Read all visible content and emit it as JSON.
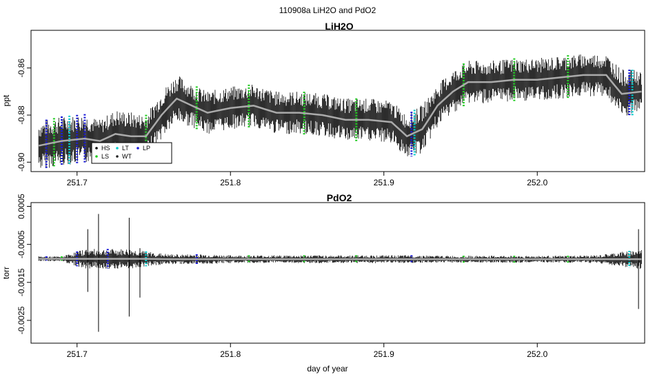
{
  "figure_title": "110908a   LiH2O and PdO2",
  "xlabel": "day of year",
  "colors": {
    "HS": "#000000",
    "LS": "#22cc22",
    "LT": "#00cccc",
    "WT": "#222222",
    "LP": "#1a1ad6",
    "trace": "#000000",
    "smooth": "#aaaaaa"
  },
  "chart_data": [
    {
      "type": "line",
      "title": "LiH2O",
      "ylabel": "ppt",
      "xlabel": "",
      "xlim": [
        251.67,
        252.07
      ],
      "ylim": [
        -0.904,
        -0.844
      ],
      "x_ticks": [
        "251.7",
        "251.8",
        "251.9",
        "252.0"
      ],
      "y_ticks": [
        "-0.90",
        "-0.88",
        "-0.86"
      ],
      "legend": {
        "placement": "bottom-left",
        "entries": [
          "HS",
          "LS",
          "LT",
          "WT",
          "LP"
        ]
      },
      "series": [
        {
          "x": [
            251.675,
            251.69,
            251.705,
            251.715,
            251.725,
            251.735,
            251.745,
            251.755,
            251.765,
            251.775,
            251.785,
            251.8,
            251.815,
            251.83,
            251.845,
            251.86,
            251.875,
            251.89,
            251.905,
            251.915,
            251.925,
            251.935,
            251.945,
            251.955,
            251.97,
            251.985,
            252.0,
            252.015,
            252.03,
            252.045,
            252.055,
            252.068
          ],
          "y": [
            -0.893,
            -0.891,
            -0.89,
            -0.891,
            -0.888,
            -0.889,
            -0.889,
            -0.88,
            -0.873,
            -0.876,
            -0.879,
            -0.877,
            -0.876,
            -0.879,
            -0.879,
            -0.88,
            -0.882,
            -0.882,
            -0.883,
            -0.889,
            -0.886,
            -0.876,
            -0.87,
            -0.866,
            -0.866,
            -0.865,
            -0.865,
            -0.864,
            -0.863,
            -0.863,
            -0.871,
            -0.87
          ],
          "band": [
            0.008,
            0.008,
            0.008,
            0.007,
            0.008,
            0.008,
            0.007,
            0.008,
            0.008,
            0.007,
            0.007,
            0.007,
            0.007,
            0.007,
            0.007,
            0.007,
            0.007,
            0.007,
            0.007,
            0.007,
            0.008,
            0.007,
            0.007,
            0.007,
            0.007,
            0.007,
            0.007,
            0.007,
            0.007,
            0.007,
            0.008,
            0.007
          ]
        }
      ],
      "markers": [
        {
          "x": 251.68,
          "type": "LP"
        },
        {
          "x": 251.685,
          "type": "LS"
        },
        {
          "x": 251.69,
          "type": "LP"
        },
        {
          "x": 251.695,
          "type": "LT"
        },
        {
          "x": 251.7,
          "type": "LP"
        },
        {
          "x": 251.705,
          "type": "LP"
        },
        {
          "x": 251.745,
          "type": "LS"
        },
        {
          "x": 251.778,
          "type": "LS"
        },
        {
          "x": 251.812,
          "type": "LS"
        },
        {
          "x": 251.848,
          "type": "LS"
        },
        {
          "x": 251.882,
          "type": "LS"
        },
        {
          "x": 251.918,
          "type": "LP"
        },
        {
          "x": 251.92,
          "type": "LT"
        },
        {
          "x": 251.952,
          "type": "LS"
        },
        {
          "x": 251.985,
          "type": "LS"
        },
        {
          "x": 252.02,
          "type": "LS"
        },
        {
          "x": 252.06,
          "type": "LP"
        },
        {
          "x": 252.062,
          "type": "LT"
        }
      ]
    },
    {
      "type": "line",
      "title": "PdO2",
      "ylabel": "torr",
      "xlabel": "day of year",
      "xlim": [
        251.67,
        252.07
      ],
      "ylim": [
        -0.0031,
        0.0006
      ],
      "x_ticks": [
        "251.7",
        "251.8",
        "251.9",
        "252.0"
      ],
      "y_ticks": [
        "-0.0025",
        "-0.0015",
        "-0.0005",
        "0.0005"
      ],
      "series": [
        {
          "x": [
            251.675,
            251.69,
            251.705,
            251.715,
            251.725,
            251.735,
            251.745,
            251.76,
            251.78,
            251.8,
            251.82,
            251.84,
            251.86,
            251.88,
            251.9,
            251.92,
            251.94,
            251.96,
            251.98,
            252.0,
            252.02,
            252.04,
            252.055,
            252.068
          ],
          "y": [
            -0.00088,
            -0.00088,
            -0.00088,
            -0.00088,
            -0.00088,
            -0.00088,
            -0.00088,
            -0.00089,
            -0.00089,
            -0.00089,
            -0.00089,
            -0.00089,
            -0.00089,
            -0.00089,
            -0.00089,
            -0.00089,
            -0.00089,
            -0.00089,
            -0.00089,
            -0.00089,
            -0.00089,
            -0.00089,
            -0.00089,
            -0.00089
          ],
          "band": [
            5e-05,
            5e-05,
            0.0002,
            0.0002,
            0.0002,
            0.0002,
            0.00015,
            0.0001,
            0.0001,
            8e-05,
            8e-05,
            8e-05,
            8e-05,
            8e-05,
            8e-05,
            8e-05,
            7e-05,
            7e-05,
            7e-05,
            7e-05,
            7e-05,
            8e-05,
            0.00015,
            0.0002
          ]
        }
      ],
      "spikes": [
        {
          "x": 251.707,
          "ymax": -0.0001,
          "ymin": -0.00175
        },
        {
          "x": 251.714,
          "ymax": 0.0003,
          "ymin": -0.0028
        },
        {
          "x": 251.734,
          "ymax": 0.0002,
          "ymin": -0.0024
        },
        {
          "x": 251.741,
          "ymax": -0.0006,
          "ymin": -0.0019
        },
        {
          "x": 252.066,
          "ymax": -0.0001,
          "ymin": -0.0022
        }
      ],
      "markers": [
        {
          "x": 251.68,
          "type": "LP"
        },
        {
          "x": 251.69,
          "type": "LS"
        },
        {
          "x": 251.7,
          "type": "LP"
        },
        {
          "x": 251.72,
          "type": "LP"
        },
        {
          "x": 251.745,
          "type": "LT"
        },
        {
          "x": 251.778,
          "type": "LP"
        },
        {
          "x": 251.812,
          "type": "LS"
        },
        {
          "x": 251.848,
          "type": "LS"
        },
        {
          "x": 251.882,
          "type": "LS"
        },
        {
          "x": 251.918,
          "type": "LP"
        },
        {
          "x": 251.952,
          "type": "LS"
        },
        {
          "x": 251.985,
          "type": "LS"
        },
        {
          "x": 252.02,
          "type": "LS"
        },
        {
          "x": 252.06,
          "type": "LT"
        }
      ]
    }
  ]
}
